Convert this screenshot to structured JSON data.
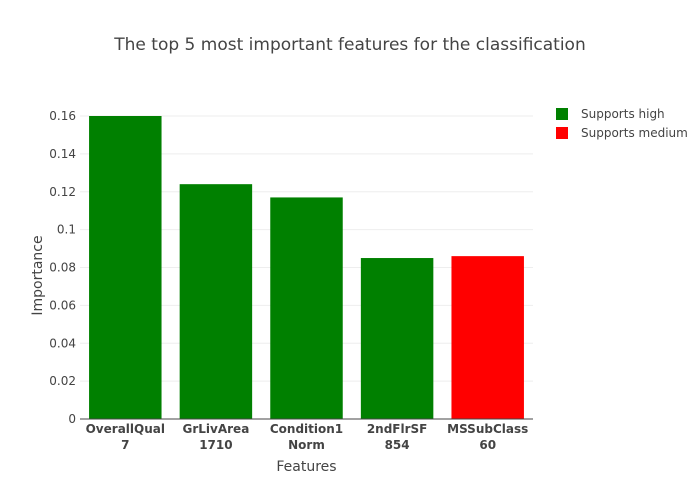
{
  "chart_data": {
    "type": "bar",
    "title": "The top 5 most important features for the classification",
    "xlabel": "Features",
    "ylabel": "Importance",
    "ylim": [
      0,
      0.16
    ],
    "yticks": [
      "0",
      "0.02",
      "0.04",
      "0.06",
      "0.08",
      "0.1",
      "0.12",
      "0.14",
      "0.16"
    ],
    "grid": true,
    "legend_position": "top-right",
    "categories": [
      {
        "line1": "OverallQual",
        "line2": "7"
      },
      {
        "line1": "GrLivArea",
        "line2": "1710"
      },
      {
        "line1": "Condition1",
        "line2": "Norm"
      },
      {
        "line1": "2ndFlrSF",
        "line2": "854"
      },
      {
        "line1": "MSSubClass",
        "line2": "60"
      }
    ],
    "values": [
      0.16,
      0.124,
      0.117,
      0.085,
      0.086
    ],
    "bar_series": [
      "Supports high",
      "Supports high",
      "Supports high",
      "Supports high",
      "Supports medium"
    ],
    "series": [
      {
        "name": "Supports high",
        "color": "#008000"
      },
      {
        "name": "Supports medium",
        "color": "#ff0000"
      }
    ]
  }
}
